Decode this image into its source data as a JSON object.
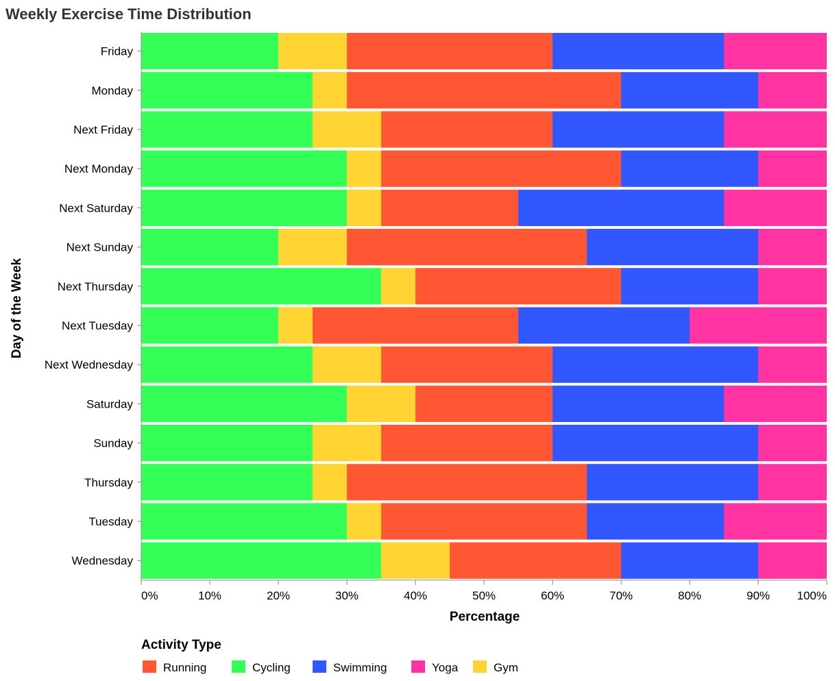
{
  "chart_data": {
    "type": "bar",
    "orientation": "horizontal",
    "stacked": true,
    "normalized": true,
    "title": "Weekly Exercise Time Distribution",
    "xlabel": "Percentage",
    "ylabel": "Day of the Week",
    "xlim": [
      0,
      100
    ],
    "x_ticks": [
      "0%",
      "10%",
      "20%",
      "30%",
      "40%",
      "50%",
      "60%",
      "70%",
      "80%",
      "90%",
      "100%"
    ],
    "grid": false,
    "legend_title": "Activity Type",
    "legend_position": "bottom-left",
    "legend_order": [
      "Running",
      "Cycling",
      "Swimming",
      "Yoga",
      "Gym"
    ],
    "stack_order": [
      "Cycling",
      "Gym",
      "Running",
      "Swimming",
      "Yoga"
    ],
    "categories": [
      "Friday",
      "Monday",
      "Next Friday",
      "Next Monday",
      "Next Saturday",
      "Next Sunday",
      "Next Thursday",
      "Next Tuesday",
      "Next Wednesday",
      "Saturday",
      "Sunday",
      "Thursday",
      "Tuesday",
      "Wednesday"
    ],
    "series": [
      {
        "name": "Cycling",
        "color": "#33ff57",
        "values": [
          20,
          25,
          25,
          30,
          30,
          20,
          35,
          20,
          25,
          30,
          25,
          25,
          30,
          35
        ]
      },
      {
        "name": "Gym",
        "color": "#ffd433",
        "values": [
          10,
          5,
          10,
          5,
          5,
          10,
          5,
          5,
          10,
          10,
          10,
          5,
          5,
          10
        ]
      },
      {
        "name": "Running",
        "color": "#ff5733",
        "values": [
          30,
          40,
          25,
          35,
          20,
          35,
          30,
          30,
          25,
          20,
          25,
          35,
          30,
          25
        ]
      },
      {
        "name": "Swimming",
        "color": "#3357ff",
        "values": [
          25,
          20,
          25,
          20,
          30,
          25,
          20,
          25,
          30,
          25,
          30,
          25,
          20,
          20
        ]
      },
      {
        "name": "Yoga",
        "color": "#ff33a1",
        "values": [
          15,
          10,
          15,
          10,
          15,
          10,
          10,
          20,
          10,
          15,
          10,
          10,
          15,
          10
        ]
      }
    ]
  }
}
